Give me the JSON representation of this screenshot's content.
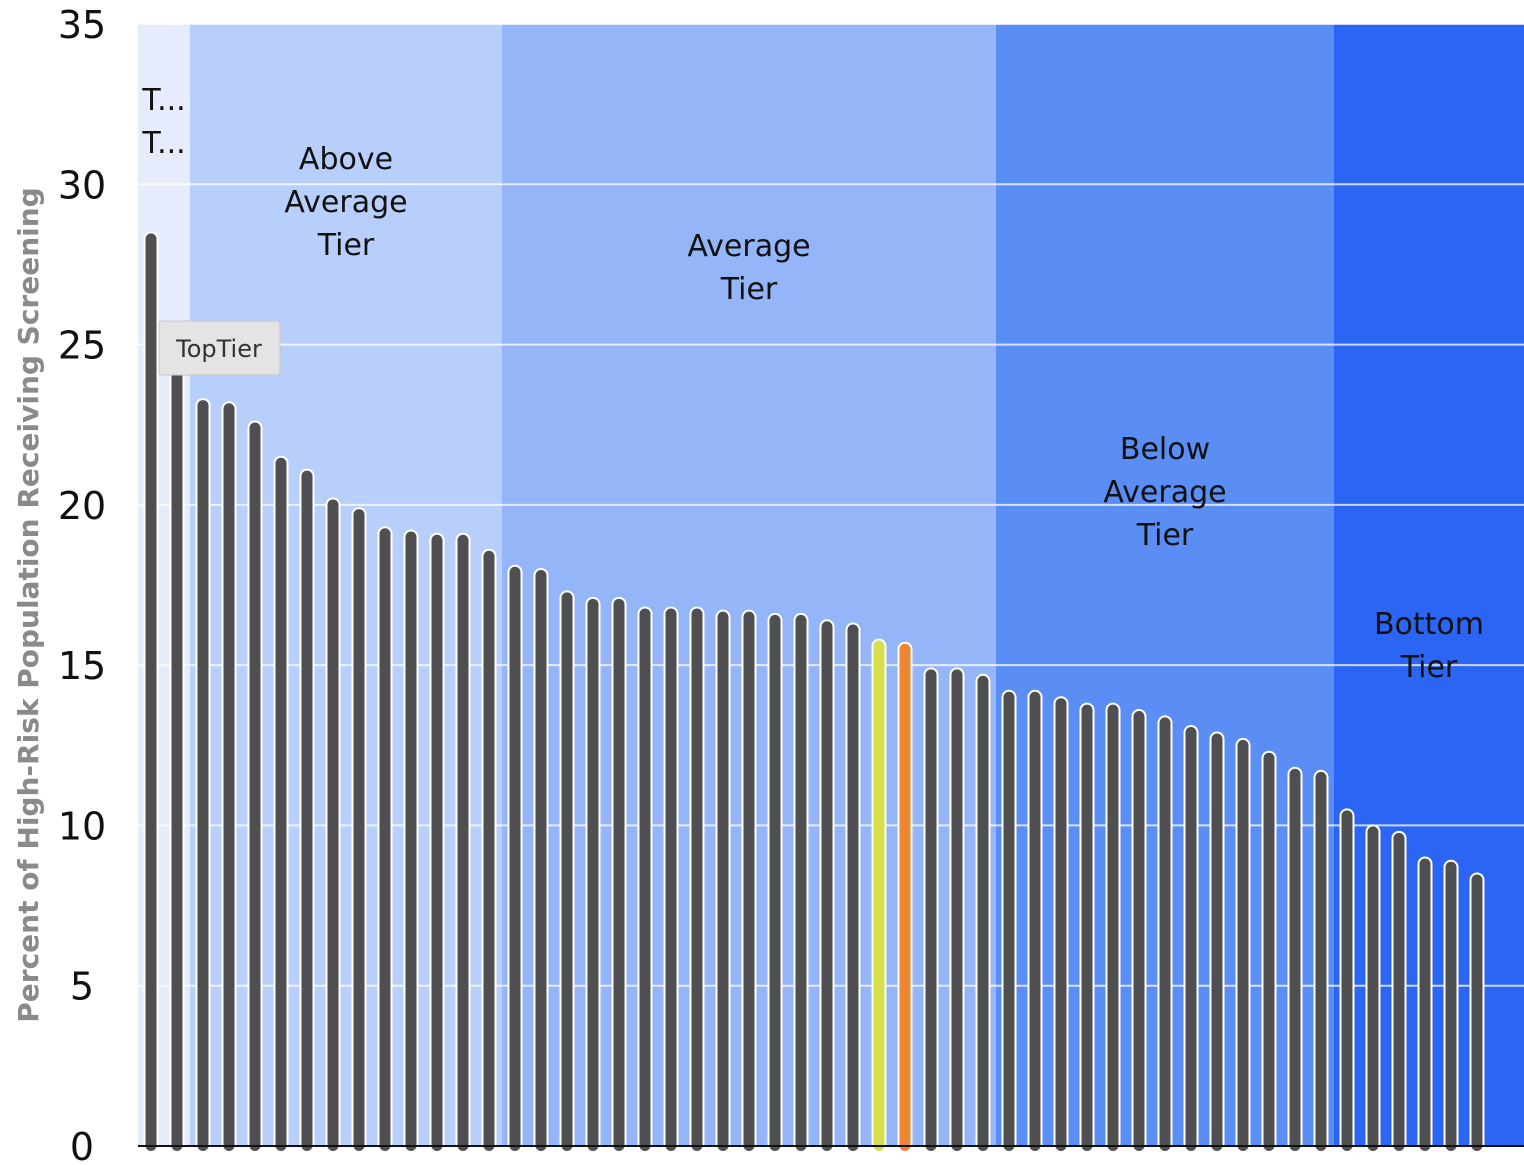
{
  "chart_data": {
    "type": "bar",
    "ylabel": "Percent of High-Risk Population Receiving Screening",
    "xlabel": "",
    "ylim": [
      0,
      35
    ],
    "yticks": [
      "0",
      "5",
      "10",
      "15",
      "20",
      "25",
      "30",
      "35"
    ],
    "grid": true,
    "bar_color_default": "#4f4f52",
    "values": [
      28.5,
      24.5,
      23.3,
      23.2,
      22.6,
      21.5,
      21.1,
      20.2,
      19.9,
      19.3,
      19.2,
      19.1,
      19.1,
      18.6,
      18.1,
      18.0,
      17.3,
      17.1,
      17.1,
      16.8,
      16.8,
      16.8,
      16.7,
      16.7,
      16.6,
      16.6,
      16.4,
      16.3,
      15.8,
      15.7,
      14.9,
      14.9,
      14.7,
      14.2,
      14.2,
      14.0,
      13.8,
      13.8,
      13.6,
      13.4,
      13.1,
      12.9,
      12.7,
      12.3,
      11.8,
      11.7,
      10.5,
      10.0,
      9.8,
      9.0,
      8.9,
      8.5
    ],
    "highlight_colors": {
      "28": "#d7df4c",
      "29": "#ec8632"
    },
    "tiers": [
      {
        "label_lines": [
          "T...",
          "T..."
        ],
        "start": 0,
        "end": 1,
        "color": "#e6ecfb"
      },
      {
        "label_lines": [
          "Above",
          "Average",
          "Tier"
        ],
        "start": 2,
        "end": 13,
        "color": "#b9cffb"
      },
      {
        "label_lines": [
          "Average",
          "Tier"
        ],
        "start": 14,
        "end": 32,
        "color": "#94b5f7"
      },
      {
        "label_lines": [
          "Below",
          "Average",
          "Tier"
        ],
        "start": 33,
        "end": 45,
        "color": "#5b8ef5"
      },
      {
        "label_lines": [
          "Bottom",
          "Tier"
        ],
        "start": 46,
        "end": 51,
        "color": "#2b65f3"
      }
    ],
    "tooltip": "TopTier"
  }
}
